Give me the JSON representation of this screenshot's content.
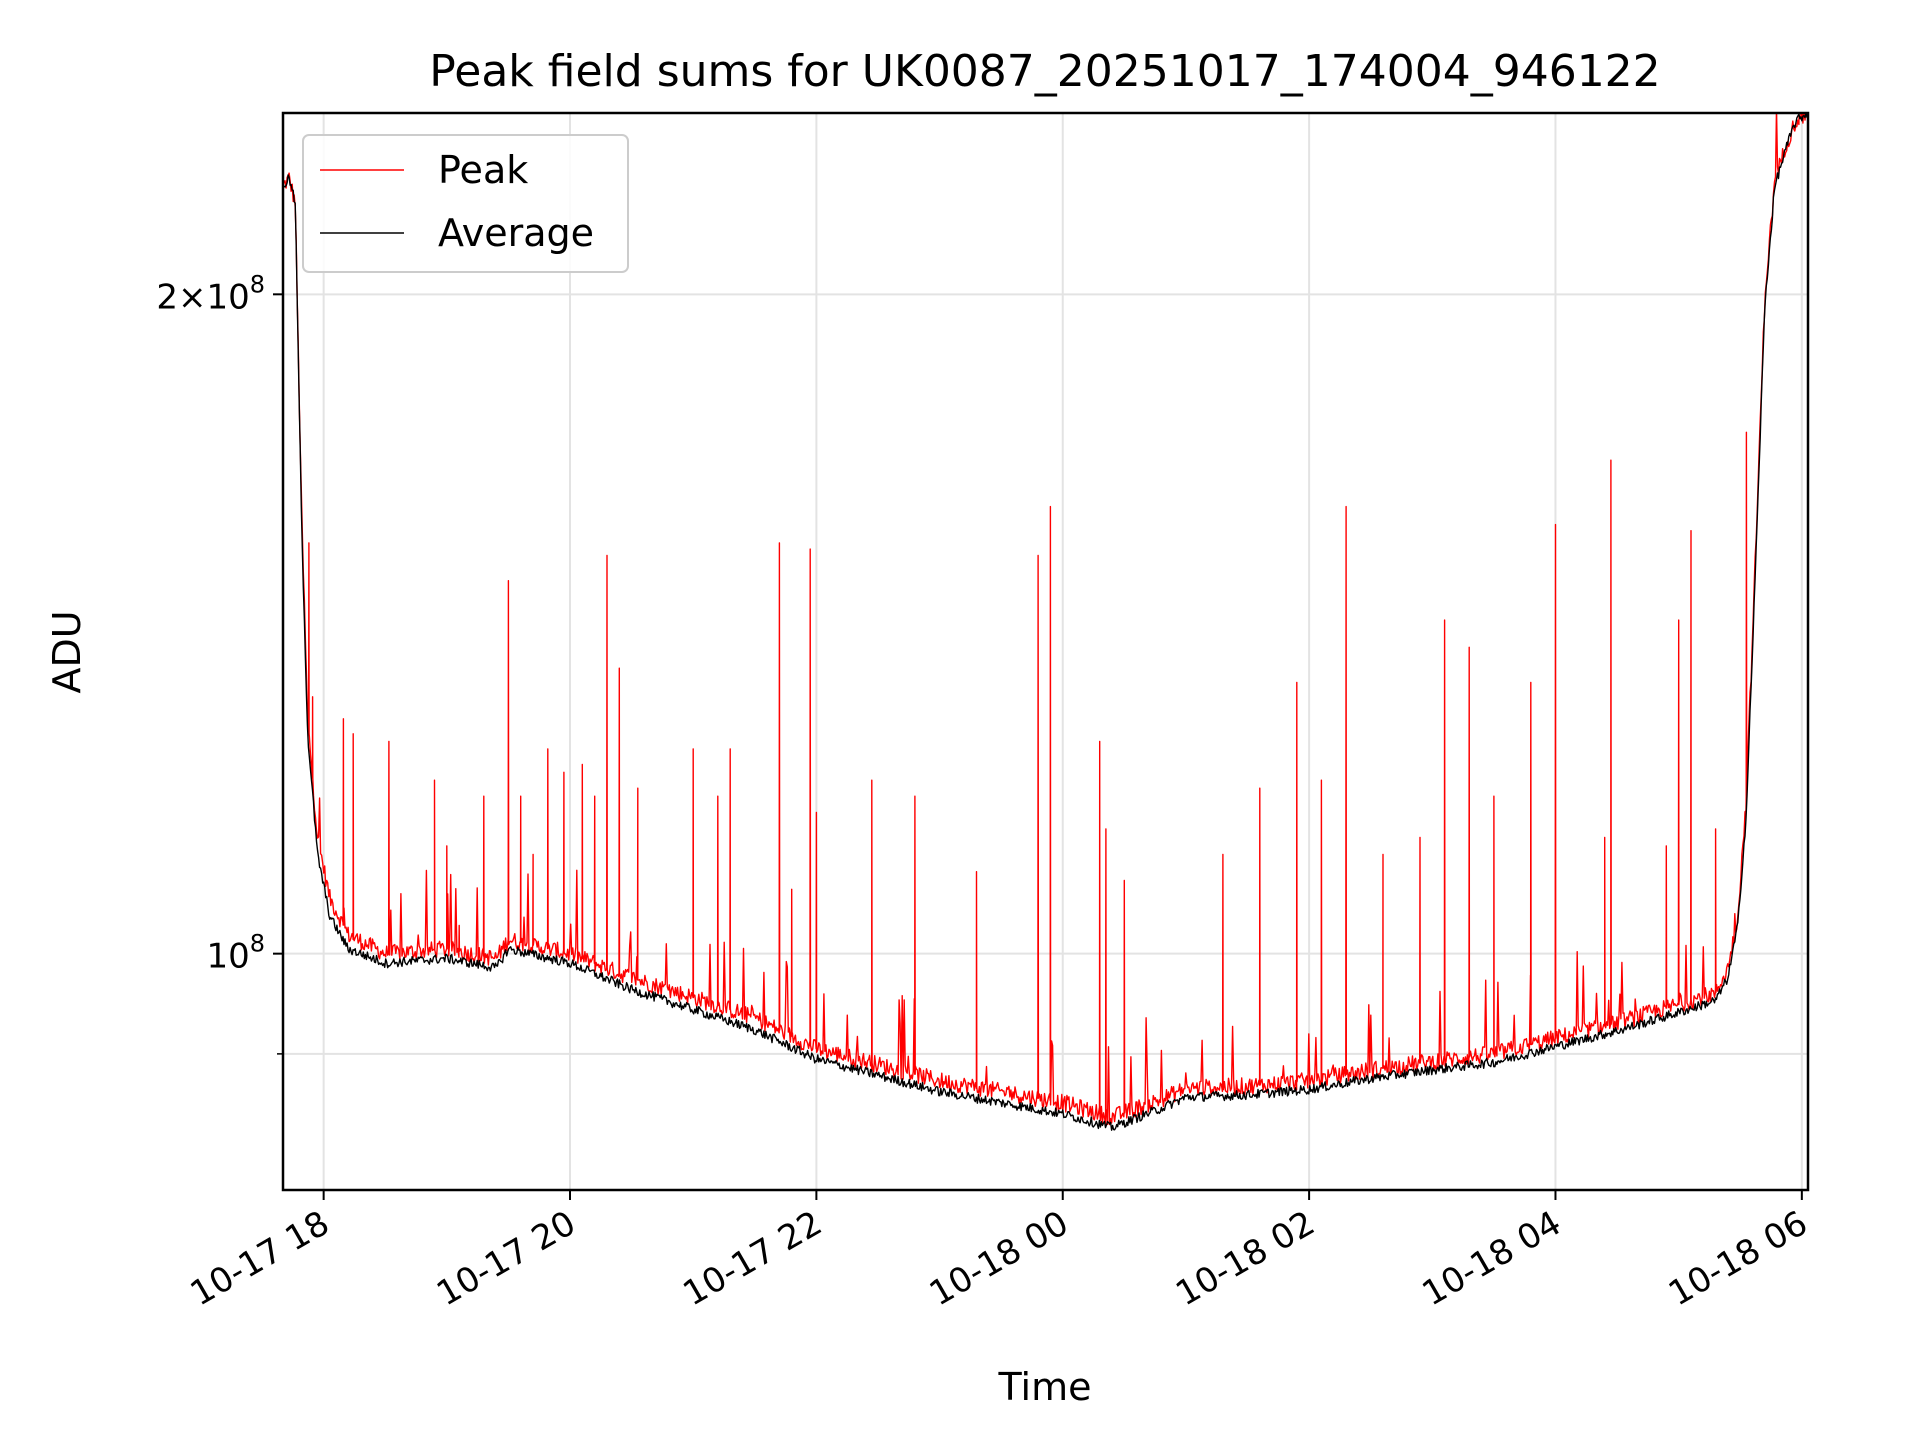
{
  "chart_data": {
    "type": "line",
    "title": "Peak field sums for UK0087_20251017_174004_946122",
    "xlabel": "Time",
    "ylabel": "ADU",
    "yscale": "log",
    "ylim": [
      78000000,
      242000000
    ],
    "xlim_hours": [
      17.67,
      30.05
    ],
    "grid": true,
    "legend_position": "upper-left",
    "x_ticks": [
      {
        "hour": 18,
        "label": "10-17 18"
      },
      {
        "hour": 20,
        "label": "10-17 20"
      },
      {
        "hour": 22,
        "label": "10-17 22"
      },
      {
        "hour": 24,
        "label": "10-18 00"
      },
      {
        "hour": 26,
        "label": "10-18 02"
      },
      {
        "hour": 28,
        "label": "10-18 04"
      },
      {
        "hour": 30,
        "label": "10-18 06"
      }
    ],
    "y_major_ticks": [
      {
        "value": 100000000,
        "base": "10",
        "exp": "8"
      },
      {
        "value": 200000000,
        "base": "2×10",
        "exp": "8"
      }
    ],
    "y_minor_grid": [
      90000000
    ],
    "series": [
      {
        "name": "Peak",
        "color": "#ff0000",
        "baseline": [
          [
            17.67,
            224000000
          ],
          [
            17.72,
            226000000
          ],
          [
            17.77,
            220000000
          ],
          [
            17.82,
            160000000
          ],
          [
            17.87,
            128000000
          ],
          [
            17.95,
            113000000
          ],
          [
            18.05,
            106000000
          ],
          [
            18.2,
            102000000
          ],
          [
            18.5,
            100000000
          ],
          [
            19.0,
            100500000
          ],
          [
            19.4,
            99500000
          ],
          [
            19.5,
            101500000
          ],
          [
            20.0,
            100000000
          ],
          [
            20.5,
            97500000
          ],
          [
            21.0,
            95500000
          ],
          [
            21.5,
            93500000
          ],
          [
            22.0,
            90500000
          ],
          [
            22.5,
            89000000
          ],
          [
            23.0,
            87500000
          ],
          [
            23.5,
            86500000
          ],
          [
            24.0,
            85500000
          ],
          [
            24.4,
            84200000
          ],
          [
            24.8,
            85800000
          ],
          [
            25.0,
            86800000
          ],
          [
            25.5,
            87000000
          ],
          [
            26.0,
            87500000
          ],
          [
            26.5,
            88500000
          ],
          [
            27.0,
            89300000
          ],
          [
            27.5,
            90000000
          ],
          [
            28.0,
            91500000
          ],
          [
            28.5,
            93000000
          ],
          [
            29.0,
            94800000
          ],
          [
            29.3,
            96000000
          ],
          [
            29.4,
            98500000
          ],
          [
            29.48,
            104000000
          ],
          [
            29.55,
            118000000
          ],
          [
            29.62,
            150000000
          ],
          [
            29.7,
            200000000
          ],
          [
            29.78,
            225000000
          ],
          [
            29.87,
            234000000
          ],
          [
            29.95,
            240000000
          ],
          [
            30.05,
            242000000
          ]
        ],
        "spikes": [
          [
            17.88,
            154000000
          ],
          [
            17.91,
            131000000
          ],
          [
            18.16,
            128000000
          ],
          [
            18.24,
            126000000
          ],
          [
            18.53,
            125000000
          ],
          [
            18.9,
            120000000
          ],
          [
            19.0,
            112000000
          ],
          [
            19.1,
            103000000
          ],
          [
            19.3,
            118000000
          ],
          [
            19.5,
            148000000
          ],
          [
            19.6,
            118000000
          ],
          [
            19.7,
            111000000
          ],
          [
            19.82,
            124000000
          ],
          [
            19.95,
            121000000
          ],
          [
            20.1,
            122000000
          ],
          [
            20.2,
            118000000
          ],
          [
            20.3,
            152000000
          ],
          [
            20.4,
            135000000
          ],
          [
            20.55,
            119000000
          ],
          [
            21.0,
            124000000
          ],
          [
            21.2,
            118000000
          ],
          [
            21.3,
            124000000
          ],
          [
            21.7,
            154000000
          ],
          [
            21.8,
            107000000
          ],
          [
            21.95,
            153000000
          ],
          [
            22.0,
            116000000
          ],
          [
            22.45,
            120000000
          ],
          [
            22.8,
            118000000
          ],
          [
            23.3,
            109000000
          ],
          [
            23.8,
            152000000
          ],
          [
            23.9,
            160000000
          ],
          [
            24.3,
            125000000
          ],
          [
            24.35,
            114000000
          ],
          [
            24.5,
            108000000
          ],
          [
            25.3,
            111000000
          ],
          [
            25.6,
            119000000
          ],
          [
            25.9,
            133000000
          ],
          [
            26.1,
            120000000
          ],
          [
            26.3,
            160000000
          ],
          [
            26.6,
            111000000
          ],
          [
            26.9,
            113000000
          ],
          [
            27.1,
            142000000
          ],
          [
            27.3,
            138000000
          ],
          [
            27.5,
            118000000
          ],
          [
            27.8,
            133000000
          ],
          [
            28.0,
            157000000
          ],
          [
            28.4,
            113000000
          ],
          [
            28.45,
            168000000
          ],
          [
            28.9,
            112000000
          ],
          [
            29.0,
            142000000
          ],
          [
            29.1,
            156000000
          ],
          [
            29.3,
            114000000
          ],
          [
            29.55,
            173000000
          ]
        ]
      },
      {
        "name": "Average",
        "color": "#000000",
        "baseline": [
          [
            17.67,
            224000000
          ],
          [
            17.72,
            226000000
          ],
          [
            17.77,
            220000000
          ],
          [
            17.82,
            158000000
          ],
          [
            17.87,
            126000000
          ],
          [
            17.95,
            111000000
          ],
          [
            18.05,
            104000000
          ],
          [
            18.2,
            100500000
          ],
          [
            18.5,
            99000000
          ],
          [
            19.0,
            99500000
          ],
          [
            19.4,
            98500000
          ],
          [
            19.5,
            100500000
          ],
          [
            20.0,
            99000000
          ],
          [
            20.5,
            96300000
          ],
          [
            21.0,
            94300000
          ],
          [
            21.5,
            92300000
          ],
          [
            22.0,
            89500000
          ],
          [
            22.5,
            88000000
          ],
          [
            23.0,
            86500000
          ],
          [
            23.5,
            85500000
          ],
          [
            24.0,
            84500000
          ],
          [
            24.4,
            83300000
          ],
          [
            24.8,
            85000000
          ],
          [
            25.0,
            86000000
          ],
          [
            25.5,
            86200000
          ],
          [
            26.0,
            86700000
          ],
          [
            26.5,
            87700000
          ],
          [
            27.0,
            88500000
          ],
          [
            27.5,
            89200000
          ],
          [
            28.0,
            90700000
          ],
          [
            28.5,
            92200000
          ],
          [
            29.0,
            94000000
          ],
          [
            29.3,
            95200000
          ],
          [
            29.4,
            97500000
          ],
          [
            29.48,
            103000000
          ],
          [
            29.55,
            116000000
          ],
          [
            29.62,
            148000000
          ],
          [
            29.7,
            198000000
          ],
          [
            29.78,
            224000000
          ],
          [
            29.87,
            233000000
          ],
          [
            29.95,
            240000000
          ],
          [
            30.05,
            242000000
          ]
        ],
        "spikes": []
      }
    ]
  }
}
